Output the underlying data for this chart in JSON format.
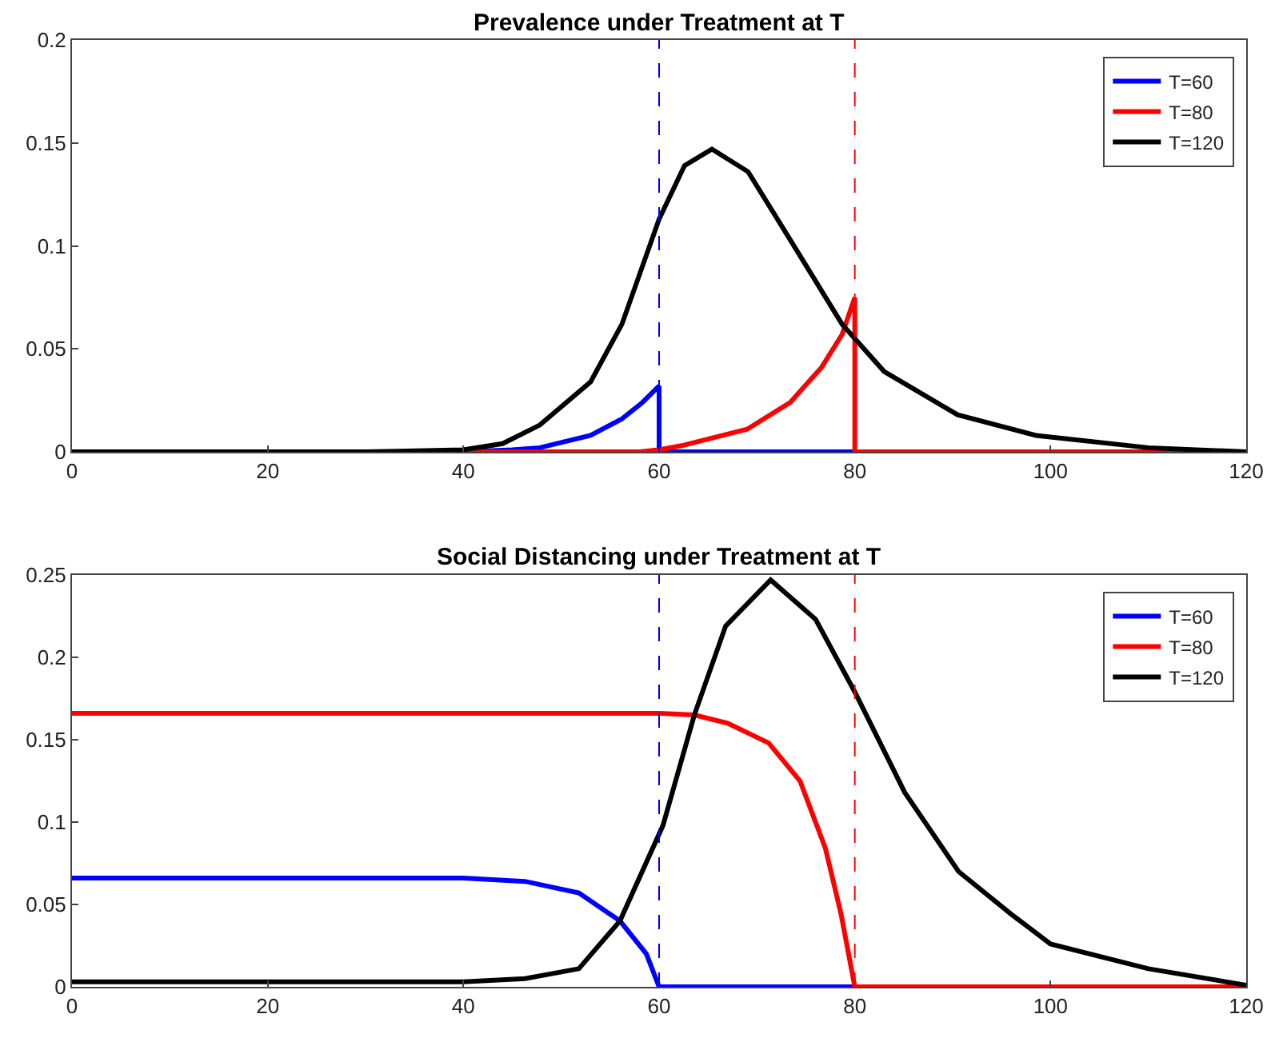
{
  "chart_data": [
    {
      "type": "line",
      "title": "Prevalence under Treatment at T",
      "xlim": [
        0,
        120
      ],
      "xticks": [
        0,
        20,
        40,
        60,
        80,
        100,
        120
      ],
      "ylim": [
        0,
        0.2
      ],
      "yticks": [
        0,
        0.05,
        0.1,
        0.15,
        0.2
      ],
      "grid": false,
      "legend": "top right",
      "line_style": "solid",
      "marker": "none",
      "series": [
        {
          "name": "T=60",
          "color": "#0000ff",
          "x": [
            0,
            40,
            45,
            47.8,
            53,
            56.2,
            58.3,
            60,
            60,
            80
          ],
          "values": [
            0,
            0,
            0.001,
            0.002,
            0.008,
            0.016,
            0.024,
            0.032,
            0,
            0
          ]
        },
        {
          "name": "T=80",
          "color": "#ff0000",
          "x": [
            0,
            40,
            58,
            60,
            62.3,
            69,
            73.4,
            76.6,
            78.7,
            80,
            80,
            120
          ],
          "values": [
            0,
            0,
            0,
            0.001,
            0.003,
            0.011,
            0.024,
            0.041,
            0.057,
            0.075,
            0,
            0
          ]
        },
        {
          "name": "T=120",
          "color": "#000000",
          "x": [
            0,
            30,
            40,
            44,
            47.8,
            53,
            56.2,
            60,
            62.6,
            65.4,
            69.1,
            73.4,
            78.7,
            83,
            90.5,
            98.5,
            110,
            120
          ],
          "values": [
            0,
            0,
            0.001,
            0.004,
            0.013,
            0.034,
            0.062,
            0.113,
            0.139,
            0.147,
            0.136,
            0.103,
            0.062,
            0.039,
            0.018,
            0.008,
            0.002,
            0
          ]
        }
      ],
      "ref_lines": [
        {
          "axis": "x",
          "value": 60,
          "color": "#0000ff",
          "line_style": "dashed"
        },
        {
          "axis": "x",
          "value": 80,
          "color": "#ff0000",
          "line_style": "dashed"
        }
      ]
    },
    {
      "type": "line",
      "title": "Social Distancing under Treatment at T",
      "xlim": [
        0,
        120
      ],
      "xticks": [
        0,
        20,
        40,
        60,
        80,
        100,
        120
      ],
      "ylim": [
        0,
        0.25
      ],
      "yticks": [
        0,
        0.05,
        0.1,
        0.15,
        0.2,
        0.25
      ],
      "grid": false,
      "legend": "top right",
      "line_style": "solid",
      "marker": "none",
      "series": [
        {
          "name": "T=60",
          "color": "#0000ff",
          "x": [
            0,
            20,
            40,
            46.3,
            51.8,
            56,
            58.7,
            60,
            80,
            120
          ],
          "values": [
            0.066,
            0.066,
            0.066,
            0.064,
            0.057,
            0.04,
            0.02,
            0,
            0,
            0
          ]
        },
        {
          "name": "T=80",
          "color": "#ff0000",
          "x": [
            0,
            20,
            40,
            60,
            63.6,
            67,
            71.2,
            74.4,
            77,
            78.6,
            80,
            120
          ],
          "values": [
            0.166,
            0.166,
            0.166,
            0.166,
            0.165,
            0.16,
            0.148,
            0.125,
            0.084,
            0.044,
            0,
            0
          ]
        },
        {
          "name": "T=120",
          "color": "#000000",
          "x": [
            0,
            20,
            40,
            46.3,
            51.8,
            56,
            60.4,
            63.6,
            66.8,
            71.4,
            76,
            80,
            85.1,
            90.6,
            96,
            100,
            110,
            120
          ],
          "values": [
            0.003,
            0.003,
            0.003,
            0.005,
            0.011,
            0.04,
            0.098,
            0.165,
            0.219,
            0.247,
            0.223,
            0.179,
            0.118,
            0.07,
            0.044,
            0.026,
            0.011,
            0.001
          ]
        }
      ],
      "ref_lines": [
        {
          "axis": "x",
          "value": 60,
          "color": "#0000ff",
          "line_style": "dashed"
        },
        {
          "axis": "x",
          "value": 80,
          "color": "#ff0000",
          "line_style": "dashed"
        }
      ]
    }
  ]
}
